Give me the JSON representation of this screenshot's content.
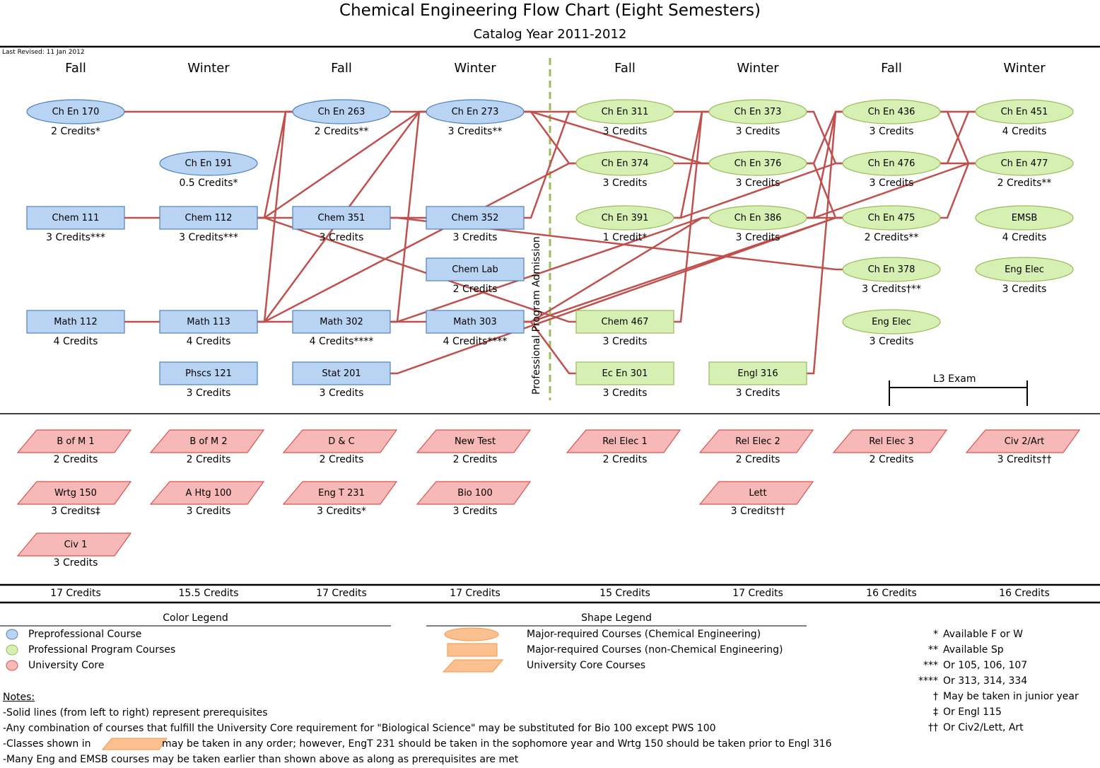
{
  "title": "Chemical Engineering Flow Chart (Eight Semesters)",
  "subtitle": "Catalog Year 2011-2012",
  "last_revised": "Last Revised: 11 Jan 2012",
  "semesters": [
    "Fall",
    "Winter",
    "Fall",
    "Winter",
    "Fall",
    "Winter",
    "Fall",
    "Winter"
  ],
  "admission_label": "Professional Program Admission",
  "l3_exam_label": "L3 Exam",
  "colors": {
    "blue_fill": "#b9d3f2",
    "blue_stroke": "#4f81bd",
    "green_fill": "#d6f0b3",
    "green_stroke": "#9bbb59",
    "red_fill": "#f7b8b8",
    "red_stroke": "#d9534f",
    "line": "#c0504d",
    "dash": "#9bbb59",
    "orange": "#fbc08f"
  },
  "courses": [
    {
      "id": "chen170",
      "label": "Ch En 170",
      "credits": "2 Credits*",
      "shape": "ellipse",
      "color": "blue",
      "col": 0,
      "row": 0
    },
    {
      "id": "chen191",
      "label": "Ch En 191",
      "credits": "0.5 Credits*",
      "shape": "ellipse",
      "color": "blue",
      "col": 1,
      "row": 1
    },
    {
      "id": "chen263",
      "label": "Ch En 263",
      "credits": "2 Credits**",
      "shape": "ellipse",
      "color": "blue",
      "col": 2,
      "row": 0
    },
    {
      "id": "chen273",
      "label": "Ch En 273",
      "credits": "3 Credits**",
      "shape": "ellipse",
      "color": "blue",
      "col": 3,
      "row": 0
    },
    {
      "id": "chem111",
      "label": "Chem 111",
      "credits": "3 Credits***",
      "shape": "rect",
      "color": "blue",
      "col": 0,
      "row": 2
    },
    {
      "id": "chem112",
      "label": "Chem 112",
      "credits": "3 Credits***",
      "shape": "rect",
      "color": "blue",
      "col": 1,
      "row": 2
    },
    {
      "id": "chem351",
      "label": "Chem 351",
      "credits": "3 Credits",
      "shape": "rect",
      "color": "blue",
      "col": 2,
      "row": 2
    },
    {
      "id": "chem352",
      "label": "Chem 352",
      "credits": "3 Credits",
      "shape": "rect",
      "color": "blue",
      "col": 3,
      "row": 2
    },
    {
      "id": "chemlab",
      "label": "Chem Lab",
      "credits": "2 Credits",
      "shape": "rect",
      "color": "blue",
      "col": 3,
      "row": 3
    },
    {
      "id": "math112",
      "label": "Math 112",
      "credits": "4 Credits",
      "shape": "rect",
      "color": "blue",
      "col": 0,
      "row": 4
    },
    {
      "id": "math113",
      "label": "Math 113",
      "credits": "4 Credits",
      "shape": "rect",
      "color": "blue",
      "col": 1,
      "row": 4
    },
    {
      "id": "math302",
      "label": "Math 302",
      "credits": "4 Credits****",
      "shape": "rect",
      "color": "blue",
      "col": 2,
      "row": 4
    },
    {
      "id": "math303",
      "label": "Math 303",
      "credits": "4 Credits****",
      "shape": "rect",
      "color": "blue",
      "col": 3,
      "row": 4
    },
    {
      "id": "phscs121",
      "label": "Phscs 121",
      "credits": "3 Credits",
      "shape": "rect",
      "color": "blue",
      "col": 1,
      "row": 5
    },
    {
      "id": "stat201",
      "label": "Stat 201",
      "credits": "3 Credits",
      "shape": "rect",
      "color": "blue",
      "col": 2,
      "row": 5
    },
    {
      "id": "chen311",
      "label": "Ch En 311",
      "credits": "3 Credits",
      "shape": "ellipse",
      "color": "green",
      "col": 4,
      "row": 0
    },
    {
      "id": "chen374",
      "label": "Ch En 374",
      "credits": "3 Credits",
      "shape": "ellipse",
      "color": "green",
      "col": 4,
      "row": 1
    },
    {
      "id": "chen391",
      "label": "Ch En 391",
      "credits": "1 Credit*",
      "shape": "ellipse",
      "color": "green",
      "col": 4,
      "row": 2
    },
    {
      "id": "chem467",
      "label": "Chem 467",
      "credits": "3 Credits",
      "shape": "rect",
      "color": "green",
      "col": 4,
      "row": 4
    },
    {
      "id": "ecen301",
      "label": "Ec En 301",
      "credits": "3 Credits",
      "shape": "rect",
      "color": "green",
      "col": 4,
      "row": 5
    },
    {
      "id": "chen373",
      "label": "Ch En 373",
      "credits": "3 Credits",
      "shape": "ellipse",
      "color": "green",
      "col": 5,
      "row": 0
    },
    {
      "id": "chen376",
      "label": "Ch En 376",
      "credits": "3 Credits",
      "shape": "ellipse",
      "color": "green",
      "col": 5,
      "row": 1
    },
    {
      "id": "chen386",
      "label": "Ch En 386",
      "credits": "3 Credits",
      "shape": "ellipse",
      "color": "green",
      "col": 5,
      "row": 2
    },
    {
      "id": "engl316",
      "label": "Engl 316",
      "credits": "3 Credits",
      "shape": "rect",
      "color": "green",
      "col": 5,
      "row": 5
    },
    {
      "id": "chen436",
      "label": "Ch En 436",
      "credits": "3 Credits",
      "shape": "ellipse",
      "color": "green",
      "col": 6,
      "row": 0
    },
    {
      "id": "chen476",
      "label": "Ch En 476",
      "credits": "3 Credits",
      "shape": "ellipse",
      "color": "green",
      "col": 6,
      "row": 1
    },
    {
      "id": "chen475",
      "label": "Ch En 475",
      "credits": "2 Credits**",
      "shape": "ellipse",
      "color": "green",
      "col": 6,
      "row": 2
    },
    {
      "id": "chen378",
      "label": "Ch En 378",
      "credits": "3 Credits†**",
      "shape": "ellipse",
      "color": "green",
      "col": 6,
      "row": 3
    },
    {
      "id": "engelec1",
      "label": "Eng Elec",
      "credits": "3 Credits",
      "shape": "ellipse",
      "color": "green",
      "col": 6,
      "row": 4
    },
    {
      "id": "chen451",
      "label": "Ch En 451",
      "credits": "4 Credits",
      "shape": "ellipse",
      "color": "green",
      "col": 7,
      "row": 0
    },
    {
      "id": "chen477",
      "label": "Ch En 477",
      "credits": "2 Credits**",
      "shape": "ellipse",
      "color": "green",
      "col": 7,
      "row": 1
    },
    {
      "id": "emsb",
      "label": "EMSB",
      "credits": "4 Credits",
      "shape": "ellipse",
      "color": "green",
      "col": 7,
      "row": 2
    },
    {
      "id": "engelec2",
      "label": "Eng Elec",
      "credits": "3 Credits",
      "shape": "ellipse",
      "color": "green",
      "col": 7,
      "row": 3
    }
  ],
  "core_courses": [
    {
      "label": "B of M 1",
      "credits": "2 Credits",
      "col": 0,
      "row": 0
    },
    {
      "label": "Wrtg 150",
      "credits": "3 Credits‡",
      "col": 0,
      "row": 1
    },
    {
      "label": "Civ 1",
      "credits": "3 Credits",
      "col": 0,
      "row": 2
    },
    {
      "label": "B of M 2",
      "credits": "2 Credits",
      "col": 1,
      "row": 0
    },
    {
      "label": "A Htg 100",
      "credits": "3 Credits",
      "col": 1,
      "row": 1
    },
    {
      "label": "D & C",
      "credits": "2 Credits",
      "col": 2,
      "row": 0
    },
    {
      "label": "Eng T 231",
      "credits": "3 Credits*",
      "col": 2,
      "row": 1
    },
    {
      "label": "New Test",
      "credits": "2 Credits",
      "col": 3,
      "row": 0
    },
    {
      "label": "Bio 100",
      "credits": "3 Credits",
      "col": 3,
      "row": 1
    },
    {
      "label": "Rel Elec 1",
      "credits": "2 Credits",
      "col": 4,
      "row": 0
    },
    {
      "label": "Rel Elec 2",
      "credits": "2 Credits",
      "col": 5,
      "row": 0
    },
    {
      "label": "Lett",
      "credits": "3 Credits††",
      "col": 5,
      "row": 1
    },
    {
      "label": "Rel Elec 3",
      "credits": "2 Credits",
      "col": 6,
      "row": 0
    },
    {
      "label": "Civ 2/Art",
      "credits": "3 Credits††",
      "col": 7,
      "row": 0
    }
  ],
  "totals": [
    "17 Credits",
    "15.5 Credits",
    "17 Credits",
    "17 Credits",
    "15 Credits",
    "17 Credits",
    "16 Credits",
    "16 Credits"
  ],
  "color_legend": {
    "title": "Color Legend",
    "items": [
      "Preprofessional Course",
      "Professional Program Courses",
      "University Core"
    ]
  },
  "shape_legend": {
    "title": "Shape Legend",
    "items": [
      "Major-required Courses (Chemical Engineering)",
      "Major-required Courses (non-Chemical Engineering)",
      "University Core Courses"
    ]
  },
  "footnotes": [
    {
      "sym": "*",
      "text": "Available F or W"
    },
    {
      "sym": "**",
      "text": "Available Sp"
    },
    {
      "sym": "***",
      "text": "Or 105, 106, 107"
    },
    {
      "sym": "****",
      "text": "Or 313, 314, 334"
    },
    {
      "sym": "†",
      "text": "May be taken in junior year"
    },
    {
      "sym": "‡",
      "text": "Or Engl 115"
    },
    {
      "sym": "††",
      "text": "Or Civ2/Lett, Art"
    }
  ],
  "notes": {
    "heading": "Notes:",
    "line1": "-Solid lines (from left to right) represent prerequisites",
    "line2": "-Any combination of courses that fulfill the University Core  requirement for \"Biological Science\" may be substituted for Bio 100 except PWS 100",
    "line3a": "-Classes shown in",
    "line3b": "may be taken in any order; however, EngT 231 should be taken in the sophomore year and Wrtg 150 should be taken prior to Engl 316",
    "line4": "-Many Eng and EMSB courses may be taken earlier than shown above as along as prerequisites are met"
  }
}
